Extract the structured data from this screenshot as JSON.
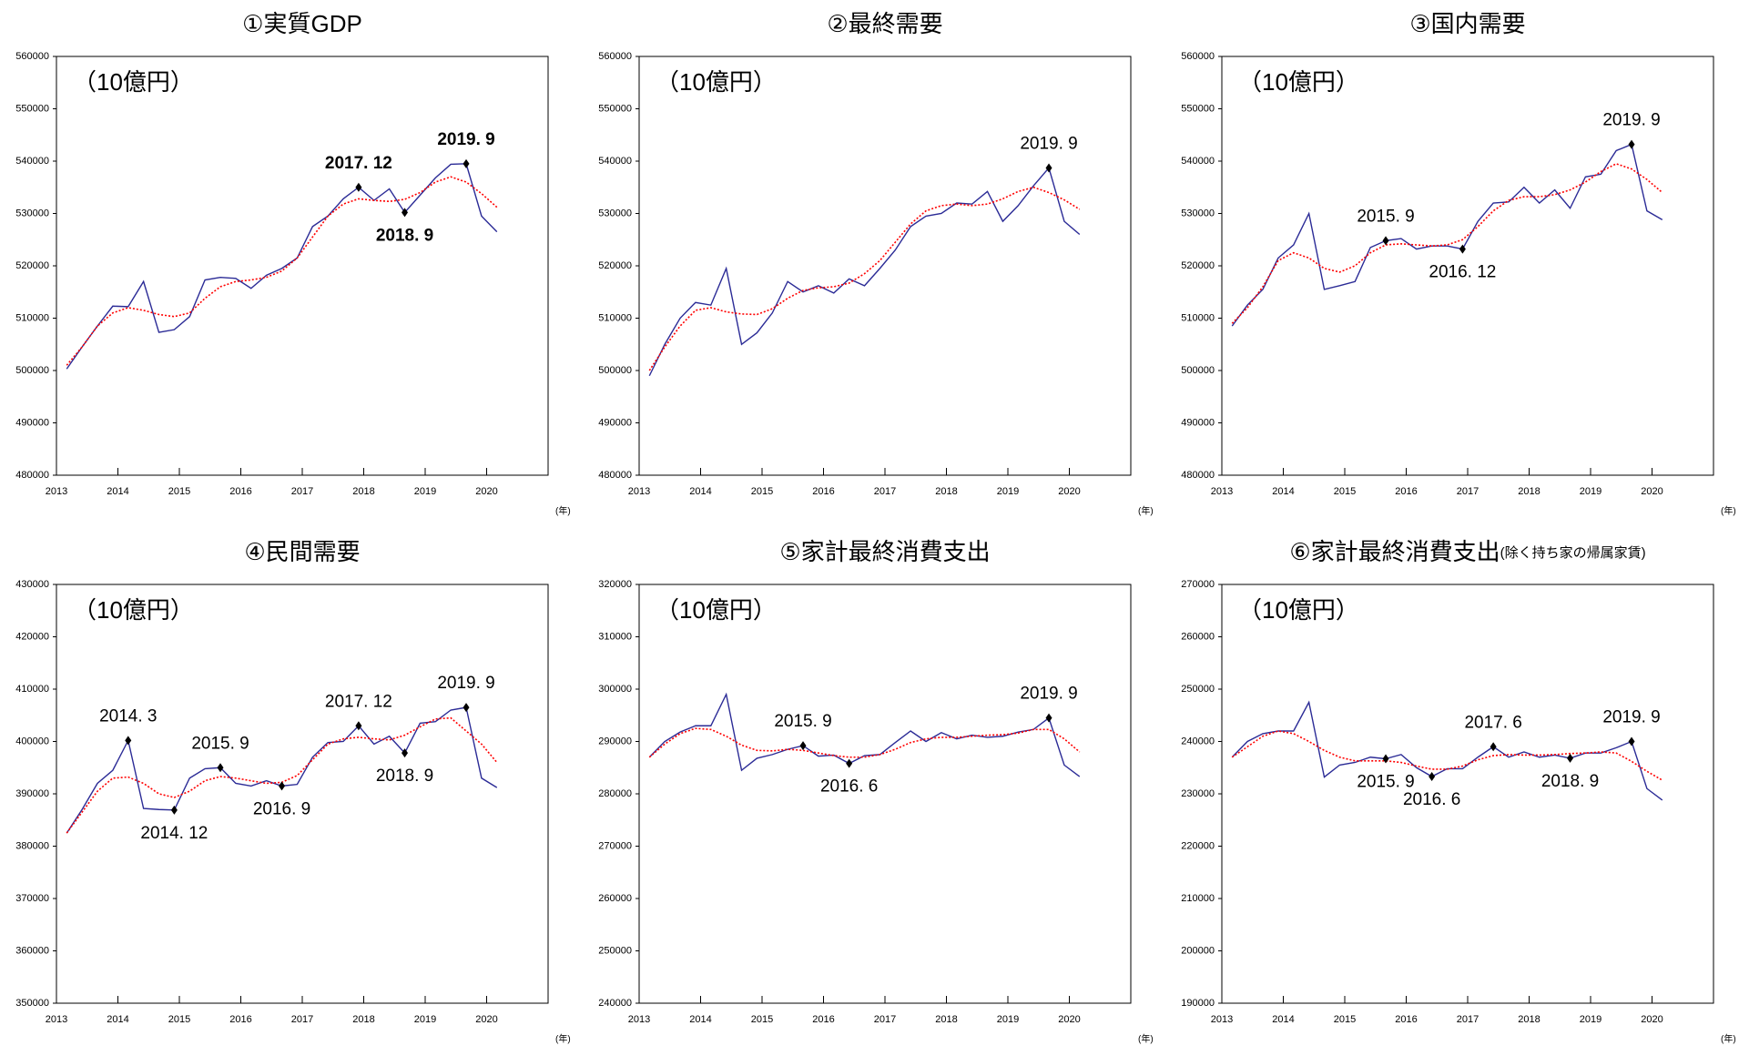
{
  "chart_data": [
    {
      "type": "line",
      "title": "①実質GDP",
      "unit_label": "（10億円）",
      "x_label": "(年)",
      "x": [
        2013.167,
        2013.417,
        2013.667,
        2013.917,
        2014.167,
        2014.417,
        2014.667,
        2014.917,
        2015.167,
        2015.417,
        2015.667,
        2015.917,
        2016.167,
        2016.417,
        2016.667,
        2016.917,
        2017.167,
        2017.417,
        2017.667,
        2017.917,
        2018.167,
        2018.417,
        2018.667,
        2018.917,
        2019.167,
        2019.417,
        2019.667,
        2019.917,
        2020.167
      ],
      "xlim": [
        2013,
        2021
      ],
      "xticks": [
        2013,
        2014,
        2015,
        2016,
        2017,
        2018,
        2019,
        2020
      ],
      "ylim": [
        480000,
        560000
      ],
      "yticks": [
        480000,
        490000,
        500000,
        510000,
        520000,
        530000,
        540000,
        550000,
        560000
      ],
      "series": [
        {
          "color": "#2b2b96",
          "values": [
            500300,
            504500,
            508500,
            512300,
            512200,
            517000,
            507300,
            507800,
            510300,
            517300,
            517800,
            517600,
            515700,
            518200,
            519500,
            521500,
            527500,
            529500,
            532800,
            535000,
            532500,
            534700,
            530200,
            533500,
            536800,
            539400,
            539500,
            529500,
            526500
          ]
        },
        {
          "color": "#ff0000",
          "dashed": true,
          "values": [
            501000,
            504500,
            508500,
            511000,
            512000,
            511500,
            510700,
            510300,
            511000,
            513800,
            516000,
            517000,
            517300,
            517800,
            519000,
            521500,
            525500,
            529500,
            531800,
            532800,
            532500,
            532300,
            532700,
            534000,
            536000,
            537000,
            536000,
            533800,
            531200
          ]
        }
      ],
      "annotations": [
        {
          "text": "2017. 12",
          "x": 2017.917
        },
        {
          "text": "2018. 9",
          "x": 2018.667
        },
        {
          "text": "2019. 9",
          "x": 2019.667
        }
      ],
      "annotation_bold": true
    },
    {
      "type": "line",
      "title": "②最終需要",
      "unit_label": "（10億円）",
      "x_label": "(年)",
      "x": [
        2013.167,
        2013.417,
        2013.667,
        2013.917,
        2014.167,
        2014.417,
        2014.667,
        2014.917,
        2015.167,
        2015.417,
        2015.667,
        2015.917,
        2016.167,
        2016.417,
        2016.667,
        2016.917,
        2017.167,
        2017.417,
        2017.667,
        2017.917,
        2018.167,
        2018.417,
        2018.667,
        2018.917,
        2019.167,
        2019.417,
        2019.667,
        2019.917,
        2020.167
      ],
      "xlim": [
        2013,
        2021
      ],
      "xticks": [
        2013,
        2014,
        2015,
        2016,
        2017,
        2018,
        2019,
        2020
      ],
      "ylim": [
        480000,
        560000
      ],
      "yticks": [
        480000,
        490000,
        500000,
        510000,
        520000,
        530000,
        540000,
        550000,
        560000
      ],
      "series": [
        {
          "color": "#2b2b96",
          "values": [
            499000,
            505000,
            510000,
            513000,
            512500,
            519500,
            505000,
            507200,
            511000,
            517000,
            515000,
            516200,
            514800,
            517500,
            516200,
            519500,
            523000,
            527500,
            529500,
            530000,
            532000,
            531800,
            534200,
            528500,
            531500,
            535300,
            538700,
            528500,
            526000
          ]
        },
        {
          "color": "#ff0000",
          "dashed": true,
          "values": [
            500000,
            504500,
            508500,
            511500,
            512000,
            511200,
            510800,
            510700,
            511800,
            513800,
            515300,
            515800,
            516000,
            516700,
            518500,
            521000,
            524500,
            528000,
            530500,
            531500,
            531800,
            531500,
            531800,
            532800,
            534200,
            535000,
            534000,
            532600,
            530800
          ]
        }
      ],
      "annotations": [
        {
          "text": "2019. 9",
          "x": 2019.667
        }
      ]
    },
    {
      "type": "line",
      "title": "③国内需要",
      "unit_label": "（10億円）",
      "x_label": "(年)",
      "x": [
        2013.167,
        2013.417,
        2013.667,
        2013.917,
        2014.167,
        2014.417,
        2014.667,
        2014.917,
        2015.167,
        2015.417,
        2015.667,
        2015.917,
        2016.167,
        2016.417,
        2016.667,
        2016.917,
        2017.167,
        2017.417,
        2017.667,
        2017.917,
        2018.167,
        2018.417,
        2018.667,
        2018.917,
        2019.167,
        2019.417,
        2019.667,
        2019.917,
        2020.167
      ],
      "xlim": [
        2013,
        2021
      ],
      "xticks": [
        2013,
        2014,
        2015,
        2016,
        2017,
        2018,
        2019,
        2020
      ],
      "ylim": [
        480000,
        560000
      ],
      "yticks": [
        480000,
        490000,
        500000,
        510000,
        520000,
        530000,
        540000,
        550000,
        560000
      ],
      "series": [
        {
          "color": "#2b2b96",
          "values": [
            508500,
            512500,
            515500,
            521500,
            524000,
            530000,
            515500,
            516200,
            517000,
            523500,
            524800,
            525200,
            523200,
            523800,
            523800,
            523200,
            528500,
            532000,
            532200,
            535000,
            532000,
            534500,
            531000,
            537000,
            537500,
            542000,
            543200,
            530500,
            528800
          ]
        },
        {
          "color": "#ff0000",
          "dashed": true,
          "values": [
            509000,
            512000,
            516000,
            521000,
            522500,
            521500,
            519500,
            518800,
            520000,
            522500,
            524000,
            524200,
            524000,
            523800,
            524000,
            525000,
            527500,
            530500,
            532500,
            533200,
            533200,
            533600,
            534500,
            536000,
            538000,
            539500,
            538500,
            536500,
            534000
          ]
        }
      ],
      "annotations": [
        {
          "text": "2015. 9",
          "x": 2015.667
        },
        {
          "text": "2016. 12",
          "x": 2016.917
        },
        {
          "text": "2019. 9",
          "x": 2019.667
        }
      ]
    },
    {
      "type": "line",
      "title": "④民間需要",
      "unit_label": "（10億円）",
      "x_label": "(年)",
      "x": [
        2013.167,
        2013.417,
        2013.667,
        2013.917,
        2014.167,
        2014.417,
        2014.667,
        2014.917,
        2015.167,
        2015.417,
        2015.667,
        2015.917,
        2016.167,
        2016.417,
        2016.667,
        2016.917,
        2017.167,
        2017.417,
        2017.667,
        2017.917,
        2018.167,
        2018.417,
        2018.667,
        2018.917,
        2019.167,
        2019.417,
        2019.667,
        2019.917,
        2020.167
      ],
      "xlim": [
        2013,
        2021
      ],
      "xticks": [
        2013,
        2014,
        2015,
        2016,
        2017,
        2018,
        2019,
        2020
      ],
      "ylim": [
        350000,
        430000
      ],
      "yticks": [
        350000,
        360000,
        370000,
        380000,
        390000,
        400000,
        410000,
        420000,
        430000
      ],
      "series": [
        {
          "color": "#2b2b96",
          "values": [
            382500,
            387000,
            392000,
            394500,
            400200,
            387200,
            387000,
            386900,
            393000,
            394800,
            395000,
            392000,
            391500,
            392500,
            391500,
            391800,
            397000,
            399800,
            400000,
            403000,
            399500,
            401000,
            397800,
            403500,
            403800,
            406000,
            406500,
            393000,
            391200
          ]
        },
        {
          "color": "#ff0000",
          "dashed": true,
          "values": [
            382500,
            386500,
            390500,
            393000,
            393200,
            392000,
            390000,
            389300,
            390500,
            392500,
            393300,
            393000,
            392500,
            392000,
            392200,
            393500,
            396500,
            399500,
            400500,
            400800,
            400500,
            400300,
            401200,
            402800,
            404300,
            404500,
            402000,
            399500,
            396000
          ]
        }
      ],
      "annotations": [
        {
          "text": "2014. 3",
          "x": 2014.167
        },
        {
          "text": "2014. 12",
          "x": 2014.917
        },
        {
          "text": "2015. 9",
          "x": 2015.667
        },
        {
          "text": "2016. 9",
          "x": 2016.667
        },
        {
          "text": "2017. 12",
          "x": 2017.917
        },
        {
          "text": "2018. 9",
          "x": 2018.667
        },
        {
          "text": "2019. 9",
          "x": 2019.667
        }
      ]
    },
    {
      "type": "line",
      "title": "⑤家計最終消費支出",
      "unit_label": "（10億円）",
      "x_label": "(年)",
      "x": [
        2013.167,
        2013.417,
        2013.667,
        2013.917,
        2014.167,
        2014.417,
        2014.667,
        2014.917,
        2015.167,
        2015.417,
        2015.667,
        2015.917,
        2016.167,
        2016.417,
        2016.667,
        2016.917,
        2017.167,
        2017.417,
        2017.667,
        2017.917,
        2018.167,
        2018.417,
        2018.667,
        2018.917,
        2019.167,
        2019.417,
        2019.667,
        2019.917,
        2020.167
      ],
      "xlim": [
        2013,
        2021
      ],
      "xticks": [
        2013,
        2014,
        2015,
        2016,
        2017,
        2018,
        2019,
        2020
      ],
      "ylim": [
        240000,
        320000
      ],
      "yticks": [
        240000,
        250000,
        260000,
        270000,
        280000,
        290000,
        300000,
        310000,
        320000
      ],
      "series": [
        {
          "color": "#2b2b96",
          "values": [
            287000,
            290000,
            291800,
            293000,
            293000,
            299000,
            284500,
            286800,
            287500,
            288500,
            289200,
            287200,
            287400,
            285800,
            287300,
            287500,
            289800,
            292000,
            290000,
            291700,
            290500,
            291200,
            290800,
            291000,
            291800,
            292300,
            294500,
            285500,
            283300
          ]
        },
        {
          "color": "#ff0000",
          "dashed": true,
          "values": [
            287000,
            289500,
            291500,
            292500,
            292300,
            291000,
            289300,
            288300,
            288200,
            288500,
            288300,
            287800,
            287300,
            287000,
            287000,
            287500,
            288500,
            289800,
            290500,
            290800,
            290800,
            291000,
            291200,
            291300,
            291600,
            292300,
            292300,
            290500,
            288000
          ]
        }
      ],
      "annotations": [
        {
          "text": "2015. 9",
          "x": 2015.667
        },
        {
          "text": "2016. 6",
          "x": 2016.417
        },
        {
          "text": "2019. 9",
          "x": 2019.667
        }
      ]
    },
    {
      "type": "line",
      "title": "⑥家計最終消費支出",
      "title_note": "(除く持ち家の帰属家賃)",
      "unit_label": "（10億円）",
      "x_label": "(年)",
      "x": [
        2013.167,
        2013.417,
        2013.667,
        2013.917,
        2014.167,
        2014.417,
        2014.667,
        2014.917,
        2015.167,
        2015.417,
        2015.667,
        2015.917,
        2016.167,
        2016.417,
        2016.667,
        2016.917,
        2017.167,
        2017.417,
        2017.667,
        2017.917,
        2018.167,
        2018.417,
        2018.667,
        2018.917,
        2019.167,
        2019.417,
        2019.667,
        2019.917,
        2020.167
      ],
      "xlim": [
        2013,
        2021
      ],
      "xticks": [
        2013,
        2014,
        2015,
        2016,
        2017,
        2018,
        2019,
        2020
      ],
      "ylim": [
        190000,
        270000
      ],
      "yticks": [
        190000,
        200000,
        210000,
        220000,
        230000,
        240000,
        250000,
        260000,
        270000
      ],
      "series": [
        {
          "color": "#2b2b96",
          "values": [
            237000,
            240000,
            241500,
            242000,
            242000,
            247500,
            233200,
            235500,
            236000,
            237000,
            236700,
            237500,
            235000,
            233300,
            234800,
            234800,
            237000,
            239000,
            237000,
            238000,
            237000,
            237400,
            236800,
            237800,
            237800,
            238800,
            240000,
            231000,
            228800
          ]
        },
        {
          "color": "#ff0000",
          "dashed": true,
          "values": [
            237000,
            239000,
            241000,
            242000,
            241500,
            240000,
            238300,
            237000,
            236300,
            236300,
            236300,
            236000,
            235300,
            234700,
            234700,
            235300,
            236500,
            237300,
            237500,
            237400,
            237400,
            237500,
            237700,
            237800,
            238000,
            237800,
            236200,
            234300,
            232600
          ]
        }
      ],
      "annotations": [
        {
          "text": "2015. 9",
          "x": 2015.667
        },
        {
          "text": "2016. 6",
          "x": 2016.417
        },
        {
          "text": "2017. 6",
          "x": 2017.417
        },
        {
          "text": "2018. 9",
          "x": 2018.667
        },
        {
          "text": "2019. 9",
          "x": 2019.667
        }
      ]
    }
  ]
}
